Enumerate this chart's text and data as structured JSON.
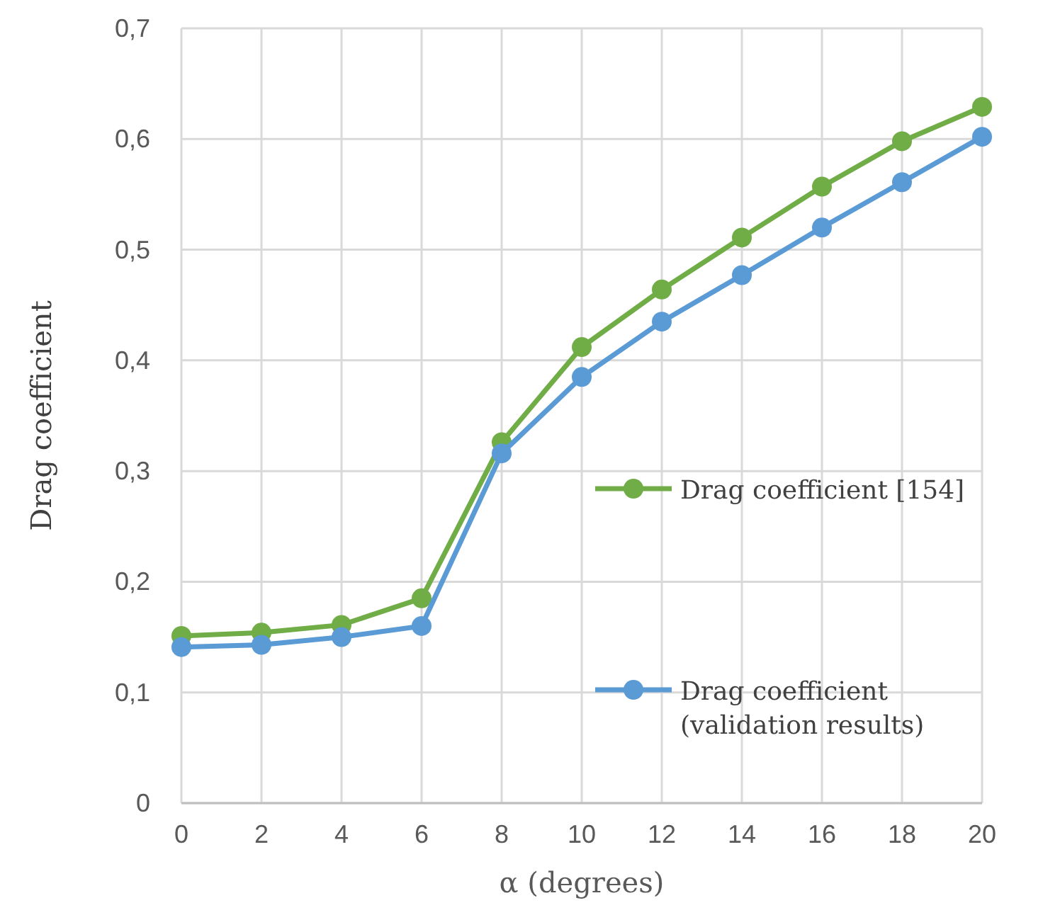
{
  "chart_data": {
    "type": "line",
    "xlabel": "α (degrees)",
    "ylabel": "Drag coefficient",
    "x": [
      0,
      2,
      4,
      6,
      8,
      10,
      12,
      14,
      16,
      18,
      20
    ],
    "series": [
      {
        "name": "Drag coefficient [154]",
        "color": "#70ad47",
        "values": [
          0.151,
          0.154,
          0.161,
          0.185,
          0.326,
          0.412,
          0.464,
          0.511,
          0.557,
          0.598,
          0.629
        ]
      },
      {
        "name": "Drag coefficient (validation results)",
        "color": "#5b9bd5",
        "values": [
          0.141,
          0.143,
          0.15,
          0.16,
          0.316,
          0.385,
          0.435,
          0.477,
          0.52,
          0.561,
          0.602
        ]
      }
    ],
    "xlim": [
      0,
      20
    ],
    "xticks": [
      0,
      2,
      4,
      6,
      8,
      10,
      12,
      14,
      16,
      18,
      20
    ],
    "ylim": [
      0,
      0.7
    ],
    "yticks": [
      0,
      {
        "value": 0.1,
        "label": "0,1"
      },
      {
        "value": 0.2,
        "label": "0,2"
      },
      {
        "value": 0.3,
        "label": "0,3"
      },
      {
        "value": 0.4,
        "label": "0,4"
      },
      {
        "value": 0.5,
        "label": "0,5"
      },
      {
        "value": 0.6,
        "label": "0,6"
      },
      {
        "value": 0.7,
        "label": "0,7"
      }
    ],
    "grid": true,
    "legend": "right",
    "marker": "circle",
    "line_style": "solid"
  }
}
